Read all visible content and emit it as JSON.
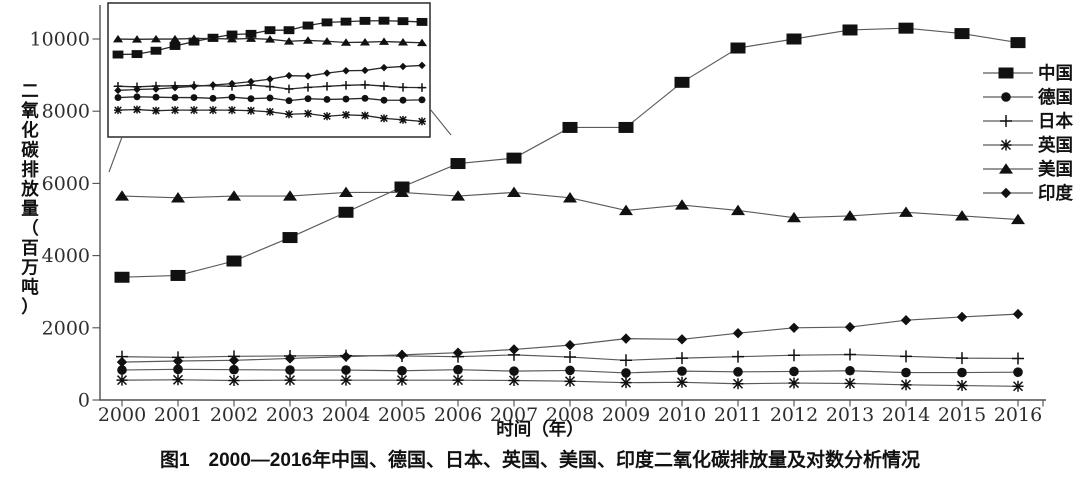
{
  "figure": {
    "caption": "图1　2000—2016年中国、德国、日本、英国、美国、印度二氧化碳排放量及对数分析情况",
    "background_color": "#ffffff",
    "ink_color": "#111111",
    "line_color": "#5a5a5a"
  },
  "chart_data": {
    "type": "line",
    "title": "",
    "xlabel": "时间（年）",
    "ylabel": "二氧化碳排放量（百万吨）",
    "x": [
      2000,
      2001,
      2002,
      2003,
      2004,
      2005,
      2006,
      2007,
      2008,
      2009,
      2010,
      2011,
      2012,
      2013,
      2014,
      2015,
      2016
    ],
    "x_tick_labels": [
      "2000",
      "2001",
      "2002",
      "2003",
      "2004",
      "2005",
      "2006",
      "2007",
      "2008",
      "2009",
      "2010",
      "2011",
      "2012",
      "2013",
      "2014",
      "2015",
      "2016"
    ],
    "y_ticks": [
      0,
      2000,
      4000,
      6000,
      8000,
      10000
    ],
    "y_tick_labels": [
      "0",
      "2000",
      "4000",
      "6000",
      "8000",
      "10000"
    ],
    "ylim": [
      0,
      10900
    ],
    "grid": false,
    "legend_position": "right",
    "series": [
      {
        "id": "china",
        "name": "中国",
        "marker": "square",
        "values": [
          3400,
          3450,
          3850,
          4500,
          5200,
          5900,
          6550,
          6700,
          7550,
          7550,
          8800,
          9750,
          10000,
          10250,
          10300,
          10150,
          9900
        ]
      },
      {
        "id": "germany",
        "name": "德国",
        "marker": "circle",
        "values": [
          830,
          850,
          840,
          830,
          830,
          810,
          840,
          800,
          820,
          750,
          800,
          780,
          790,
          810,
          760,
          760,
          770
        ]
      },
      {
        "id": "japan",
        "name": "日本",
        "marker": "plus",
        "values": [
          1200,
          1180,
          1210,
          1220,
          1230,
          1220,
          1200,
          1250,
          1190,
          1100,
          1160,
          1200,
          1240,
          1260,
          1210,
          1160,
          1150
        ]
      },
      {
        "id": "uk",
        "name": "英国",
        "marker": "asterisk",
        "values": [
          550,
          560,
          540,
          550,
          550,
          550,
          550,
          540,
          520,
          480,
          490,
          450,
          470,
          460,
          420,
          400,
          380
        ]
      },
      {
        "id": "usa",
        "name": "美国",
        "marker": "triangle",
        "values": [
          5650,
          5600,
          5650,
          5650,
          5750,
          5750,
          5650,
          5750,
          5600,
          5250,
          5400,
          5250,
          5050,
          5100,
          5200,
          5100,
          5000
        ]
      },
      {
        "id": "india",
        "name": "印度",
        "marker": "diamond",
        "values": [
          1050,
          1080,
          1100,
          1150,
          1200,
          1250,
          1310,
          1400,
          1520,
          1700,
          1680,
          1850,
          2000,
          2020,
          2210,
          2300,
          2380
        ]
      }
    ],
    "inset": {
      "note": "对数分析",
      "transform": "log10",
      "has_axis_labels": false,
      "series_source": "same six series, log10 scale"
    }
  }
}
